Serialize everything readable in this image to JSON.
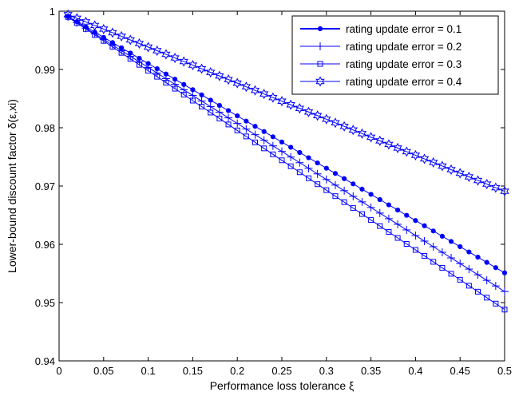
{
  "chart_data": {
    "type": "line",
    "xlabel": "Performance loss tolerance ξ",
    "ylabel": "Lower-bound discount factor δ(ε,xi)",
    "xlim": [
      0,
      0.5
    ],
    "ylim": [
      0.94,
      1.0
    ],
    "x_ticks": [
      "0",
      "0.05",
      "0.1",
      "0.15",
      "0.2",
      "0.25",
      "0.3",
      "0.35",
      "0.4",
      "0.45",
      "0.5"
    ],
    "y_ticks": [
      "0.94",
      "0.95",
      "0.96",
      "0.97",
      "0.98",
      "0.99",
      "1"
    ],
    "grid": false,
    "legend_position": "top-right",
    "x_range": {
      "start": 0.01,
      "end": 0.5,
      "step": 0.01
    },
    "series": [
      {
        "name": "rating update error = 0.1",
        "marker": "dot",
        "start": 0.9991,
        "end": 0.9551,
        "color": "#0000ff"
      },
      {
        "name": "rating update error = 0.2",
        "marker": "plus",
        "start": 0.999,
        "end": 0.9519,
        "color": "#0000ff"
      },
      {
        "name": "rating update error = 0.3",
        "marker": "square",
        "start": 0.999,
        "end": 0.9488,
        "color": "#0000ff"
      },
      {
        "name": "rating update error = 0.4",
        "marker": "star",
        "start": 0.9994,
        "end": 0.9691,
        "color": "#0000ff"
      }
    ]
  }
}
